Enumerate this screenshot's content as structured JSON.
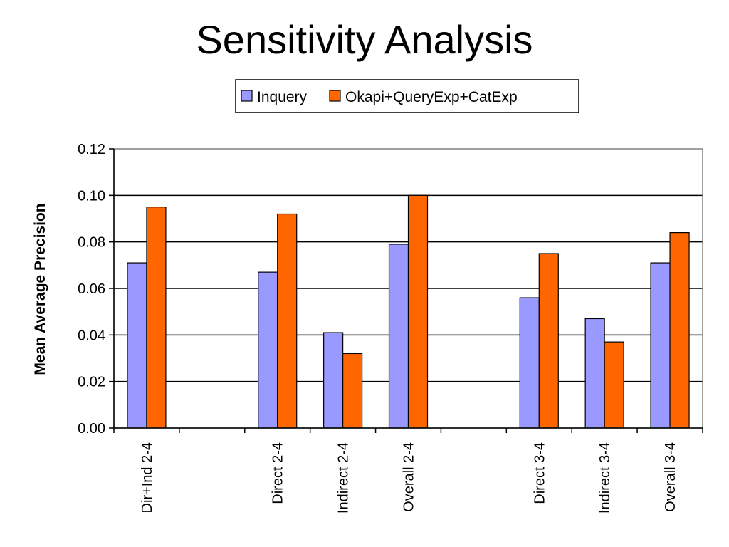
{
  "chart_data": {
    "type": "bar",
    "title": "Sensitivity Analysis",
    "xlabel": "",
    "ylabel": "Mean Average Precision",
    "categories": [
      "Dir+Ind 2-4",
      "",
      "Direct 2-4",
      "Indirect 2-4",
      "Overall 2-4",
      "",
      "Direct 3-4",
      "Indirect 3-4",
      "Overall 3-4"
    ],
    "series": [
      {
        "name": "Inquery",
        "color": "#9999ff",
        "values": [
          0.071,
          null,
          0.067,
          0.041,
          0.079,
          null,
          0.056,
          0.047,
          0.071
        ]
      },
      {
        "name": "Okapi+QueryExp+CatExp",
        "color": "#ff6600",
        "values": [
          0.095,
          null,
          0.092,
          0.032,
          0.1,
          null,
          0.075,
          0.037,
          0.084
        ]
      }
    ],
    "ylim": [
      0,
      0.12
    ],
    "yticks": [
      0.0,
      0.02,
      0.04,
      0.06,
      0.08,
      0.1,
      0.12
    ],
    "ytick_labels": [
      "0.00",
      "0.02",
      "0.04",
      "0.06",
      "0.08",
      "0.10",
      "0.12"
    ],
    "grid": true,
    "legend": "top"
  }
}
